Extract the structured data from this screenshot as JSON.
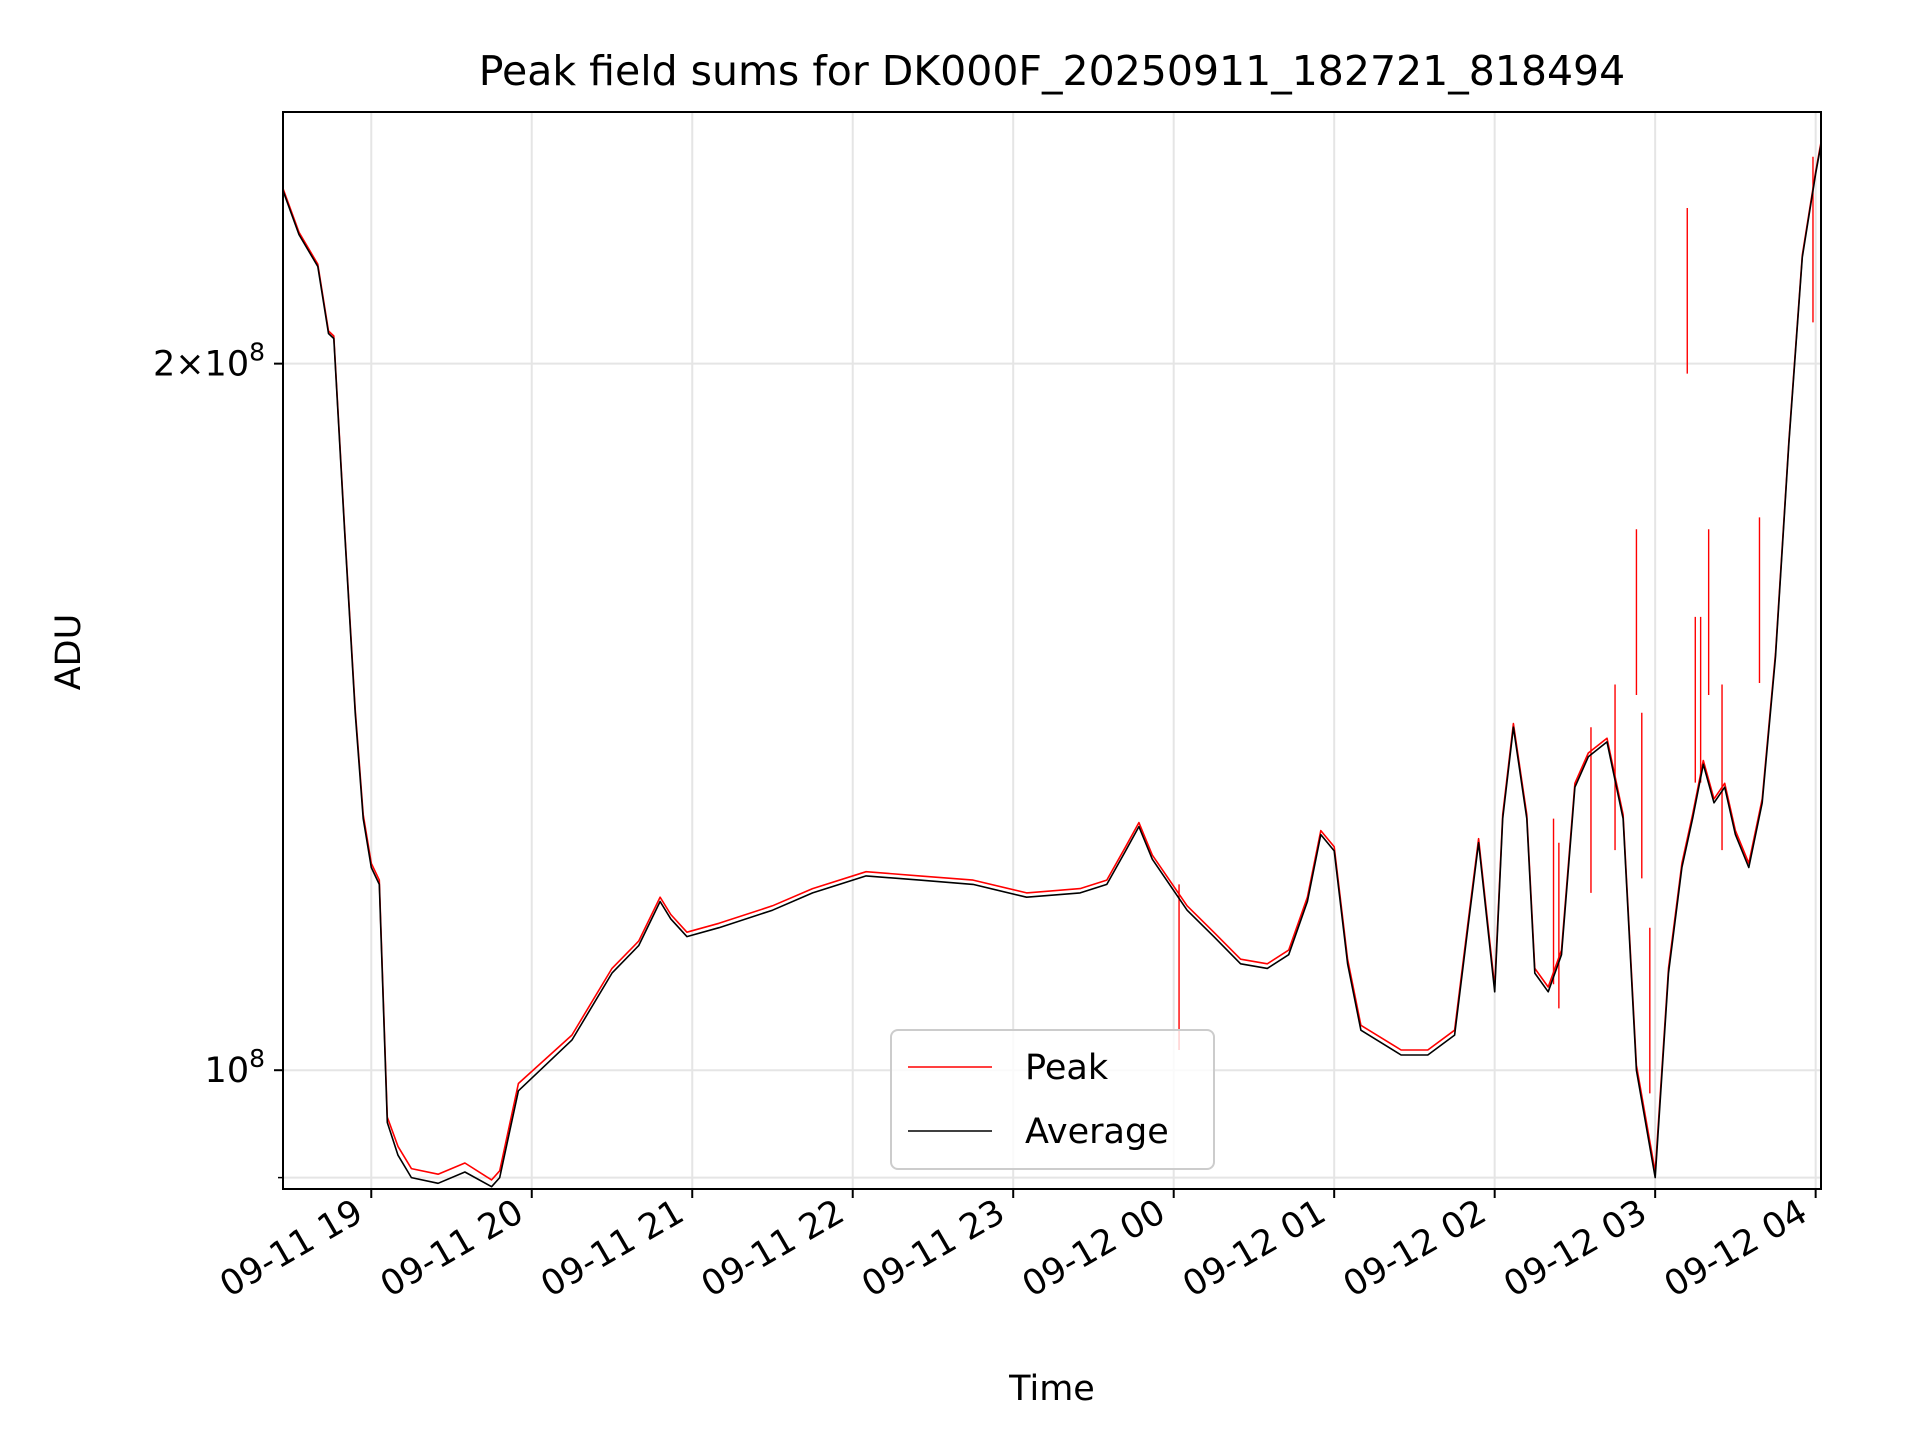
{
  "chart_data": {
    "type": "line",
    "title": "Peak field sums for DK000F_20250911_182721_818494",
    "xlabel": "Time",
    "ylabel": "ADU",
    "yscale": "log",
    "grid": true,
    "legend_position": "lower center",
    "xlim": [
      "2025-09-11 18:27",
      "2025-09-12 04:02"
    ],
    "ylim": [
      89000000,
      256000000
    ],
    "x_ticks": [
      {
        "x": "2025-09-11 19:00",
        "label": "09-11 19"
      },
      {
        "x": "2025-09-11 20:00",
        "label": "09-11 20"
      },
      {
        "x": "2025-09-11 21:00",
        "label": "09-11 21"
      },
      {
        "x": "2025-09-11 22:00",
        "label": "09-11 22"
      },
      {
        "x": "2025-09-11 23:00",
        "label": "09-11 23"
      },
      {
        "x": "2025-09-12 00:00",
        "label": "09-12 00"
      },
      {
        "x": "2025-09-12 01:00",
        "label": "09-12 01"
      },
      {
        "x": "2025-09-12 02:00",
        "label": "09-12 02"
      },
      {
        "x": "2025-09-12 03:00",
        "label": "09-12 03"
      },
      {
        "x": "2025-09-12 04:00",
        "label": "09-12 04"
      }
    ],
    "y_ticks": [
      {
        "y": 100000000,
        "base": "10",
        "exp": "8"
      },
      {
        "y": 200000000,
        "mant": "2",
        "base": "10",
        "exp": "8"
      }
    ],
    "y_minor_ticks": [
      90000000
    ],
    "series": [
      {
        "name": "Average",
        "color": "#000000",
        "x": [
          "2025-09-11 18:27",
          "2025-09-11 18:33",
          "2025-09-11 18:40",
          "2025-09-11 18:44",
          "2025-09-11 18:46",
          "2025-09-11 18:50",
          "2025-09-11 18:54",
          "2025-09-11 18:57",
          "2025-09-11 19:00",
          "2025-09-11 19:03",
          "2025-09-11 19:06",
          "2025-09-11 19:10",
          "2025-09-11 19:15",
          "2025-09-11 19:25",
          "2025-09-11 19:35",
          "2025-09-11 19:45",
          "2025-09-11 19:48",
          "2025-09-11 19:55",
          "2025-09-11 20:15",
          "2025-09-11 20:30",
          "2025-09-11 20:40",
          "2025-09-11 20:48",
          "2025-09-11 20:52",
          "2025-09-11 20:58",
          "2025-09-11 21:10",
          "2025-09-11 21:30",
          "2025-09-11 21:45",
          "2025-09-11 22:05",
          "2025-09-11 22:25",
          "2025-09-11 22:45",
          "2025-09-11 23:05",
          "2025-09-11 23:25",
          "2025-09-11 23:35",
          "2025-09-11 23:42",
          "2025-09-11 23:47",
          "2025-09-11 23:52",
          "2025-09-12 00:05",
          "2025-09-12 00:15",
          "2025-09-12 00:25",
          "2025-09-12 00:35",
          "2025-09-12 00:43",
          "2025-09-12 00:50",
          "2025-09-12 00:55",
          "2025-09-12 01:00",
          "2025-09-12 01:05",
          "2025-09-12 01:10",
          "2025-09-12 01:25",
          "2025-09-12 01:35",
          "2025-09-12 01:45",
          "2025-09-12 01:50",
          "2025-09-12 01:54",
          "2025-09-12 02:00",
          "2025-09-12 02:03",
          "2025-09-12 02:07",
          "2025-09-12 02:12",
          "2025-09-12 02:15",
          "2025-09-12 02:20",
          "2025-09-12 02:25",
          "2025-09-12 02:30",
          "2025-09-12 02:35",
          "2025-09-12 02:42",
          "2025-09-12 02:48",
          "2025-09-12 02:53",
          "2025-09-12 03:00",
          "2025-09-12 03:05",
          "2025-09-12 03:10",
          "2025-09-12 03:14",
          "2025-09-12 03:18",
          "2025-09-12 03:22",
          "2025-09-12 03:26",
          "2025-09-12 03:30",
          "2025-09-12 03:35",
          "2025-09-12 03:40",
          "2025-09-12 03:45",
          "2025-09-12 03:50",
          "2025-09-12 03:55",
          "2025-09-12 04:00",
          "2025-09-12 04:02"
        ],
        "values": [
          237000000,
          227000000,
          220000000,
          206000000,
          205000000,
          170000000,
          142000000,
          128000000,
          122000000,
          120000000,
          95000000,
          92000000,
          90000000,
          89500000,
          90500000,
          89200000,
          90000000,
          98000000,
          103000000,
          110000000,
          113000000,
          118000000,
          116000000,
          114000000,
          115000000,
          117000000,
          119000000,
          121000000,
          120500000,
          120000000,
          118500000,
          119000000,
          120000000,
          124000000,
          127000000,
          123000000,
          117000000,
          114000000,
          111000000,
          110500000,
          112000000,
          118000000,
          126000000,
          124000000,
          111000000,
          104000000,
          101500000,
          101500000,
          103500000,
          115000000,
          125000000,
          108000000,
          128000000,
          140000000,
          128000000,
          110000000,
          108000000,
          112000000,
          132000000,
          136000000,
          138000000,
          128000000,
          100000000,
          90000000,
          110000000,
          122000000,
          128000000,
          135000000,
          130000000,
          132000000,
          126000000,
          122000000,
          130000000,
          150000000,
          185000000,
          222000000,
          241000000,
          248000000
        ]
      },
      {
        "name": "Peak",
        "color": "#ff0000",
        "x": [
          "2025-09-11 18:27",
          "2025-09-11 18:33",
          "2025-09-11 18:40",
          "2025-09-11 18:44",
          "2025-09-11 18:46",
          "2025-09-11 18:50",
          "2025-09-11 18:54",
          "2025-09-11 18:57",
          "2025-09-11 19:00",
          "2025-09-11 19:03",
          "2025-09-11 19:06",
          "2025-09-11 19:10",
          "2025-09-11 19:15",
          "2025-09-11 19:25",
          "2025-09-11 19:35",
          "2025-09-11 19:45",
          "2025-09-11 19:48",
          "2025-09-11 19:55",
          "2025-09-11 20:15",
          "2025-09-11 20:30",
          "2025-09-11 20:40",
          "2025-09-11 20:48",
          "2025-09-11 20:52",
          "2025-09-11 20:58",
          "2025-09-11 21:10",
          "2025-09-11 21:30",
          "2025-09-11 21:45",
          "2025-09-11 22:05",
          "2025-09-11 22:25",
          "2025-09-11 22:45",
          "2025-09-11 23:05",
          "2025-09-11 23:25",
          "2025-09-11 23:35",
          "2025-09-11 23:42",
          "2025-09-11 23:47",
          "2025-09-11 23:52",
          "2025-09-12 00:05",
          "2025-09-12 00:15",
          "2025-09-12 00:25",
          "2025-09-12 00:35",
          "2025-09-12 00:43",
          "2025-09-12 00:50",
          "2025-09-12 00:55",
          "2025-09-12 01:00",
          "2025-09-12 01:05",
          "2025-09-12 01:10",
          "2025-09-12 01:25",
          "2025-09-12 01:35",
          "2025-09-12 01:45",
          "2025-09-12 01:50",
          "2025-09-12 01:54",
          "2025-09-12 02:00",
          "2025-09-12 02:03",
          "2025-09-12 02:07",
          "2025-09-12 02:12",
          "2025-09-12 02:15",
          "2025-09-12 02:20",
          "2025-09-12 02:25",
          "2025-09-12 02:30",
          "2025-09-12 02:35",
          "2025-09-12 02:42",
          "2025-09-12 02:48",
          "2025-09-12 02:53",
          "2025-09-12 03:00",
          "2025-09-12 03:05",
          "2025-09-12 03:10",
          "2025-09-12 03:14",
          "2025-09-12 03:18",
          "2025-09-12 03:22",
          "2025-09-12 03:26",
          "2025-09-12 03:30",
          "2025-09-12 03:35",
          "2025-09-12 03:40",
          "2025-09-12 03:45",
          "2025-09-12 03:50",
          "2025-09-12 03:55",
          "2025-09-12 04:00",
          "2025-09-12 04:02"
        ],
        "values": [
          237500000,
          227500000,
          220500000,
          206500000,
          205500000,
          170500000,
          142500000,
          128500000,
          122500000,
          120500000,
          95500000,
          92800000,
          90800000,
          90300000,
          91300000,
          89800000,
          90600000,
          98700000,
          103500000,
          110500000,
          113500000,
          118500000,
          116500000,
          114500000,
          115500000,
          117500000,
          119500000,
          121500000,
          121000000,
          120500000,
          119000000,
          119500000,
          120500000,
          124500000,
          127500000,
          123500000,
          117500000,
          114500000,
          111500000,
          111000000,
          112500000,
          118500000,
          126500000,
          124500000,
          111500000,
          104500000,
          102000000,
          102000000,
          104000000,
          115500000,
          125500000,
          108500000,
          128500000,
          140500000,
          128500000,
          110500000,
          108500000,
          112500000,
          132500000,
          136500000,
          138500000,
          128500000,
          100500000,
          90500000,
          110500000,
          122500000,
          128500000,
          135500000,
          130500000,
          132500000,
          126500000,
          122500000,
          130500000,
          150500000,
          185500000,
          222500000,
          241500000,
          248500000
        ],
        "spikes": [
          {
            "x": "2025-09-12 00:02",
            "value": 120000000
          },
          {
            "x": "2025-09-12 02:22",
            "value": 128000000
          },
          {
            "x": "2025-09-12 02:24",
            "value": 125000000
          },
          {
            "x": "2025-09-12 02:36",
            "value": 140000000
          },
          {
            "x": "2025-09-12 02:45",
            "value": 146000000
          },
          {
            "x": "2025-09-12 02:53",
            "value": 170000000
          },
          {
            "x": "2025-09-12 02:55",
            "value": 142000000
          },
          {
            "x": "2025-09-12 02:58",
            "value": 115000000
          },
          {
            "x": "2025-09-12 03:12",
            "value": 233000000
          },
          {
            "x": "2025-09-12 03:15",
            "value": 156000000
          },
          {
            "x": "2025-09-12 03:17",
            "value": 156000000
          },
          {
            "x": "2025-09-12 03:20",
            "value": 170000000
          },
          {
            "x": "2025-09-12 03:25",
            "value": 146000000
          },
          {
            "x": "2025-09-12 03:39",
            "value": 172000000
          },
          {
            "x": "2025-09-12 03:59",
            "value": 245000000
          }
        ]
      }
    ],
    "legend": [
      {
        "name": "Peak",
        "color": "#ff0000"
      },
      {
        "name": "Average",
        "color": "#000000"
      }
    ]
  }
}
